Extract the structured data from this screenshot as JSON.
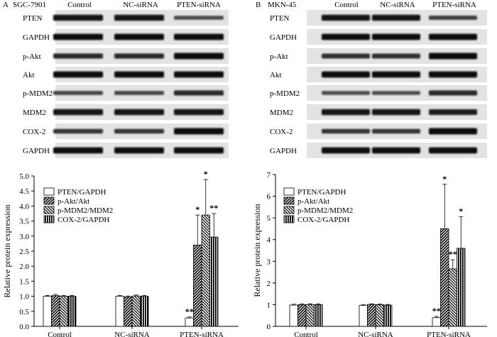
{
  "panels": [
    {
      "letter": "A",
      "cell_line": "SGC-7901",
      "lanes": [
        "Control",
        "NC-siRNA",
        "PTEN-siRNA"
      ],
      "blots": [
        "PTEN",
        "GAPDH",
        "p-Akt",
        "Akt",
        "p-MDM2",
        "MDM2",
        "COX-2",
        "GAPDH"
      ],
      "band_intensity": [
        [
          0.9,
          0.9,
          0.4
        ],
        [
          0.95,
          0.95,
          0.95
        ],
        [
          0.7,
          0.7,
          1.0
        ],
        [
          0.95,
          0.95,
          0.95
        ],
        [
          0.45,
          0.45,
          0.7
        ],
        [
          0.9,
          0.9,
          0.9
        ],
        [
          0.6,
          0.6,
          1.0
        ],
        [
          0.95,
          0.95,
          0.95
        ]
      ]
    },
    {
      "letter": "B",
      "cell_line": "MKN-45",
      "lanes": [
        "Control",
        "NC-siRNA",
        "PTEN-siRNA"
      ],
      "blots": [
        "PTEN",
        "GAPDH",
        "p-Akt",
        "Akt",
        "p-MDM2",
        "MDM2",
        "COX-2",
        "GAPDH"
      ],
      "band_intensity": [
        [
          0.9,
          0.9,
          0.5
        ],
        [
          0.95,
          0.95,
          0.95
        ],
        [
          0.65,
          0.65,
          1.0
        ],
        [
          0.95,
          0.95,
          0.95
        ],
        [
          0.4,
          0.4,
          0.7
        ],
        [
          0.9,
          0.9,
          0.85
        ],
        [
          0.6,
          0.6,
          1.0
        ],
        [
          0.95,
          0.95,
          0.95
        ]
      ]
    }
  ],
  "chart_data": [
    {
      "type": "bar",
      "categories": [
        "Control",
        "NC-siRNA",
        "PTEN-siRNA"
      ],
      "ylabel": "Relative protein expression",
      "ylim": [
        0,
        5.0
      ],
      "yticks": [
        "0.0",
        "0.5",
        "1.0",
        "1.5",
        "2.0",
        "2.5",
        "3.0",
        "3.5",
        "4.0",
        "4.5",
        "5.0"
      ],
      "legend_position": "top-left",
      "series": [
        {
          "name": "PTEN/GAPDH",
          "pattern": "white",
          "values": [
            1.0,
            1.0,
            0.28
          ],
          "errors": [
            0.03,
            0.03,
            0.03
          ],
          "sig": [
            "",
            "",
            "**"
          ]
        },
        {
          "name": "p-Akt/Akt",
          "pattern": "diag-right",
          "values": [
            1.02,
            0.98,
            2.7
          ],
          "errors": [
            0.04,
            0.03,
            1.0
          ],
          "sig": [
            "",
            "",
            "*"
          ]
        },
        {
          "name": "p-MDM2/MDM2",
          "pattern": "diag-left",
          "values": [
            1.0,
            1.01,
            3.7
          ],
          "errors": [
            0.03,
            0.03,
            1.18
          ],
          "sig": [
            "",
            "",
            "*"
          ]
        },
        {
          "name": "COX-2/GAPDH",
          "pattern": "vertical",
          "values": [
            1.0,
            1.0,
            2.97
          ],
          "errors": [
            0.03,
            0.03,
            0.78
          ],
          "sig": [
            "",
            "",
            "**"
          ]
        }
      ]
    },
    {
      "type": "bar",
      "categories": [
        "Control",
        "NC-siRNA",
        "PTEN-siRNA"
      ],
      "ylabel": "Relative protein expression",
      "ylim": [
        0,
        7
      ],
      "yticks": [
        "0",
        "1",
        "2",
        "3",
        "4",
        "5",
        "6",
        "7"
      ],
      "legend_position": "top-left",
      "series": [
        {
          "name": "PTEN/GAPDH",
          "pattern": "white",
          "values": [
            0.98,
            0.97,
            0.4
          ],
          "errors": [
            0.04,
            0.03,
            0.06
          ],
          "sig": [
            "",
            "",
            "**"
          ]
        },
        {
          "name": "p-Akt/Akt",
          "pattern": "diag-right",
          "values": [
            1.0,
            1.01,
            4.5
          ],
          "errors": [
            0.04,
            0.03,
            2.05
          ],
          "sig": [
            "",
            "",
            "*"
          ]
        },
        {
          "name": "p-MDM2/MDM2",
          "pattern": "diag-left",
          "values": [
            1.01,
            1.0,
            2.65
          ],
          "errors": [
            0.03,
            0.03,
            0.42
          ],
          "sig": [
            "",
            "",
            "**"
          ]
        },
        {
          "name": "COX-2/GAPDH",
          "pattern": "vertical",
          "values": [
            1.0,
            0.98,
            3.6
          ],
          "errors": [
            0.04,
            0.03,
            1.45
          ],
          "sig": [
            "",
            "",
            "*"
          ]
        }
      ]
    }
  ]
}
